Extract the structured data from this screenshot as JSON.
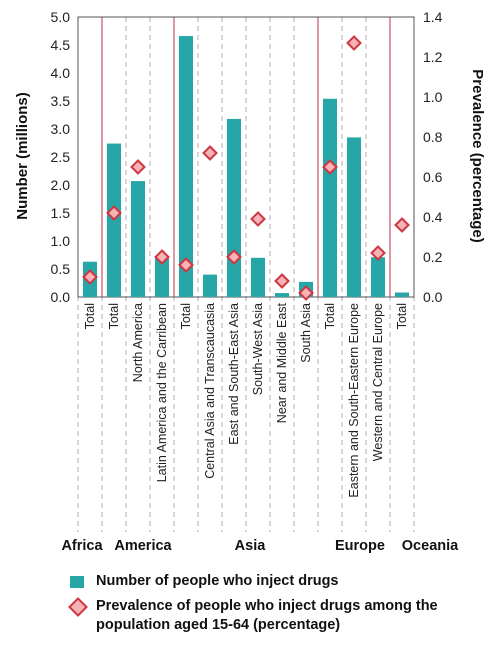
{
  "chart_data": {
    "type": "bar",
    "ylabel": "Number (millions)",
    "y2label": "Prevalence (percentage)",
    "ylim": [
      0,
      5.0
    ],
    "y2lim": [
      0,
      1.4
    ],
    "yticks": [
      "0.0",
      "0.5",
      "1.0",
      "1.5",
      "2.0",
      "2.5",
      "3.0",
      "3.5",
      "4.0",
      "4.5",
      "5.0"
    ],
    "y2ticks": [
      "0.0",
      "0.2",
      "0.4",
      "0.6",
      "0.8",
      "1.0",
      "1.2",
      "1.4"
    ],
    "categories": [
      "Total",
      "Total",
      "North America",
      "Latin America and the Carribean",
      "Total",
      "Central Asia and Transcaucasia",
      "East and South-East Asia",
      "South-West Asia",
      "Near and Middle East",
      "South Asia",
      "Total",
      "Eastern and South-Eastern Europe",
      "Western and Central Europe",
      "Total"
    ],
    "regions": [
      {
        "name": "Africa",
        "count": 1
      },
      {
        "name": "America",
        "count": 3
      },
      {
        "name": "Asia",
        "count": 6
      },
      {
        "name": "Europe",
        "count": 3
      },
      {
        "name": "Oceania",
        "count": 1
      }
    ],
    "series": [
      {
        "name": "Number of people who inject drugs",
        "axis": "left",
        "values": [
          0.63,
          2.74,
          2.07,
          0.69,
          4.66,
          0.4,
          3.18,
          0.7,
          0.07,
          0.27,
          3.54,
          2.85,
          0.71,
          0.08
        ]
      },
      {
        "name": "Prevalence of people who inject drugs among the population aged 15-64 (percentage)",
        "axis": "right",
        "values": [
          0.1,
          0.42,
          0.65,
          0.2,
          0.16,
          0.72,
          0.2,
          0.39,
          0.08,
          0.02,
          0.65,
          1.27,
          0.22,
          0.36
        ]
      }
    ],
    "legend": [
      "Number of people who inject drugs",
      "Prevalence of people who inject drugs among the population aged 15-64 (percentage)"
    ],
    "colors": {
      "bar": "#27a6a8",
      "marker_fill": "#f6b2b6",
      "marker_stroke": "#cf3641",
      "group_divider": "#c0304a",
      "grid": "#9a9a9a"
    }
  }
}
